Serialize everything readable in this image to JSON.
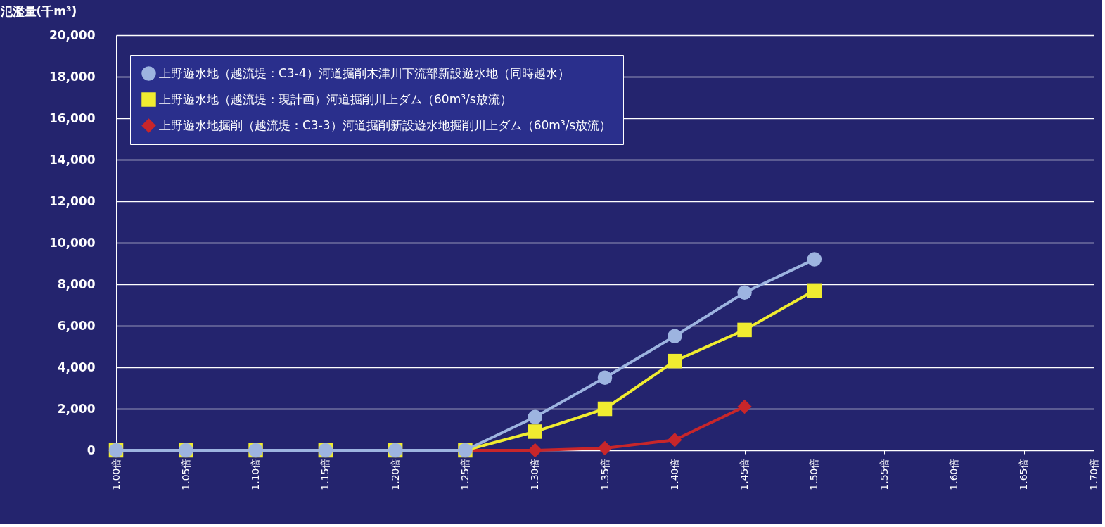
{
  "chart_data": {
    "type": "line",
    "ylabel": "氾濫量(千m³)",
    "categories": [
      "1.00倍",
      "1.05倍",
      "1.10倍",
      "1.15倍",
      "1.20倍",
      "1.25倍",
      "1.30倍",
      "1.35倍",
      "1.40倍",
      "1.45倍",
      "1.50倍",
      "1.55倍",
      "1.60倍",
      "1.65倍",
      "1.70倍"
    ],
    "series": [
      {
        "name": "上野遊水地（越流堤：C3-4）河道掘削木津川下流部新設遊水地（同時越水）",
        "color": "#9db4e0",
        "marker": "circle",
        "values": [
          0,
          0,
          0,
          0,
          0,
          0,
          1600,
          3500,
          5500,
          7600,
          9200,
          null,
          null,
          null,
          null
        ]
      },
      {
        "name": "上野遊水地（越流堤：現計画）河道掘削川上ダム（60m³/s放流）",
        "color": "#f0ec30",
        "marker": "square",
        "values": [
          0,
          0,
          0,
          0,
          0,
          0,
          900,
          2000,
          4300,
          5800,
          7700,
          null,
          null,
          null,
          null
        ]
      },
      {
        "name": "上野遊水地掘削（越流堤：C3-3）河道掘削新設遊水地掘削川上ダム（60m³/s放流）",
        "color": "#c8262a",
        "marker": "diamond",
        "values": [
          null,
          null,
          null,
          null,
          null,
          0,
          0,
          100,
          500,
          2100,
          null,
          null,
          null,
          null,
          null
        ]
      }
    ],
    "ylim": [
      0,
      20000
    ],
    "yticks": [
      {
        "value": 0,
        "label": "0"
      },
      {
        "value": 2000,
        "label": "2,000"
      },
      {
        "value": 4000,
        "label": "4,000"
      },
      {
        "value": 6000,
        "label": "6,000"
      },
      {
        "value": 8000,
        "label": "8,000"
      },
      {
        "value": 10000,
        "label": "10,000"
      },
      {
        "value": 12000,
        "label": "12,000"
      },
      {
        "value": 14000,
        "label": "14,000"
      },
      {
        "value": 16000,
        "label": "16,000"
      },
      {
        "value": 18000,
        "label": "18,000"
      },
      {
        "value": 20000,
        "label": "20,000"
      }
    ],
    "grid": "y",
    "legend": "top left"
  }
}
